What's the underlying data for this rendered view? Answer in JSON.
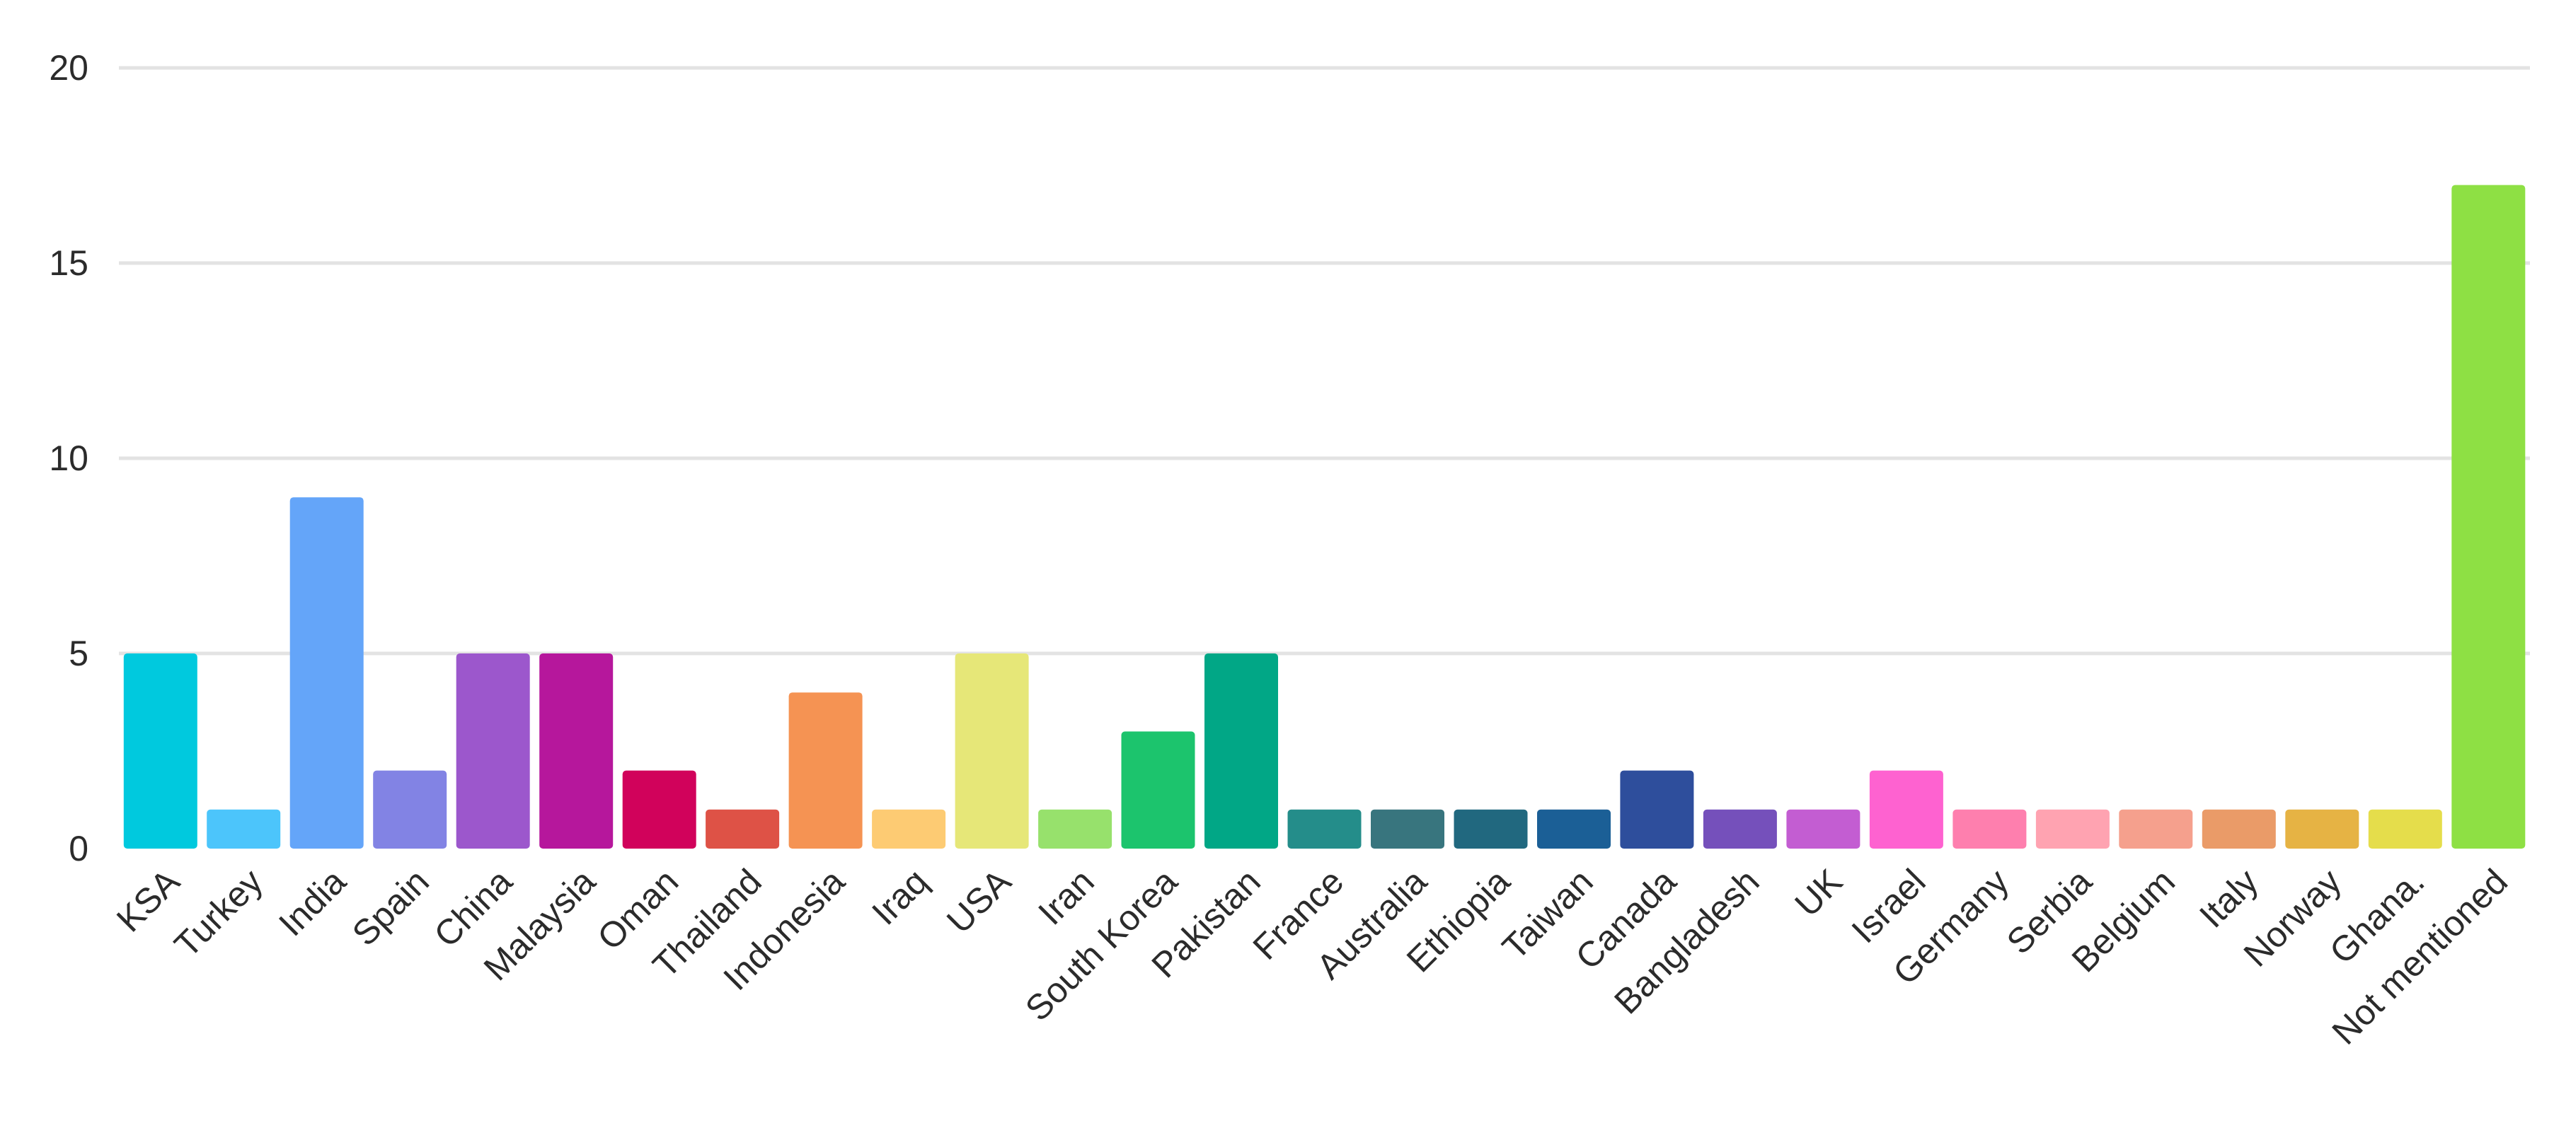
{
  "chart_data": {
    "type": "bar",
    "title": "",
    "xlabel": "",
    "ylabel": "",
    "ylim": [
      0,
      20
    ],
    "yticks": [
      0,
      5,
      10,
      15,
      20
    ],
    "grid": true,
    "legend": "none",
    "categories": [
      "KSA",
      "Turkey",
      "India",
      "Spain",
      "China",
      "Malaysia",
      "Oman",
      "Thailand",
      "Indonesia",
      "Iraq",
      "USA",
      "Iran",
      "South Korea",
      "Pakistan",
      "France",
      "Australia",
      "Ethiopia",
      "Taiwan",
      "Canada",
      "Bangladesh",
      "UK",
      "Israel",
      "Germany",
      "Serbia",
      "Belgium",
      "Italy",
      "Norway",
      "Ghana.",
      "Not mentioned"
    ],
    "values": [
      5,
      1,
      9,
      2,
      5,
      5,
      2,
      1,
      4,
      1,
      5,
      1,
      3,
      5,
      1,
      1,
      1,
      1,
      2,
      1,
      1,
      2,
      1,
      1,
      1,
      1,
      1,
      1,
      17
    ],
    "colors": [
      "#00c9de",
      "#4cc5fb",
      "#64a5f9",
      "#8283e4",
      "#9c57cc",
      "#b6179c",
      "#d1025b",
      "#de5246",
      "#f59353",
      "#fdcb73",
      "#e6e778",
      "#97e16c",
      "#1cc46d",
      "#01a786",
      "#248d8a",
      "#38757e",
      "#21687f",
      "#1b5f96",
      "#2e4e9c",
      "#7550bb",
      "#c35dd2",
      "#fe62d0",
      "#fe7fae",
      "#ffa3b1",
      "#f5a08d",
      "#ea9b68",
      "#e6b344",
      "#e5dd4b",
      "#8ee044"
    ]
  }
}
